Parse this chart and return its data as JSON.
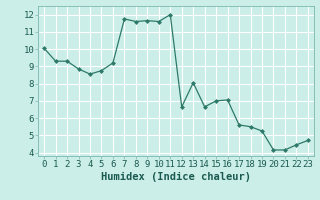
{
  "x_data": [
    0,
    1,
    2,
    3,
    4,
    5,
    6,
    7,
    8,
    9,
    10,
    11,
    12,
    13,
    14,
    15,
    16,
    17,
    18,
    19,
    20,
    21,
    22,
    23
  ],
  "y_data": [
    10.05,
    9.3,
    9.3,
    8.85,
    8.55,
    8.75,
    9.2,
    11.75,
    11.6,
    11.65,
    11.6,
    12.0,
    6.65,
    8.05,
    6.65,
    7.0,
    7.05,
    5.6,
    5.5,
    5.25,
    4.15,
    4.15,
    4.45,
    4.7
  ],
  "line_color": "#2d7a6a",
  "marker_color": "#2d7a6a",
  "bg_color": "#cceee8",
  "grid_color": "#ffffff",
  "xlabel": "Humidex (Indice chaleur)",
  "ylim": [
    3.8,
    12.5
  ],
  "xlim": [
    -0.5,
    23.5
  ],
  "yticks": [
    4,
    5,
    6,
    7,
    8,
    9,
    10,
    11,
    12
  ],
  "xticks": [
    0,
    1,
    2,
    3,
    4,
    5,
    6,
    7,
    8,
    9,
    10,
    11,
    12,
    13,
    14,
    15,
    16,
    17,
    18,
    19,
    20,
    21,
    22,
    23
  ],
  "xlabel_fontsize": 7.5,
  "tick_fontsize": 6.5
}
